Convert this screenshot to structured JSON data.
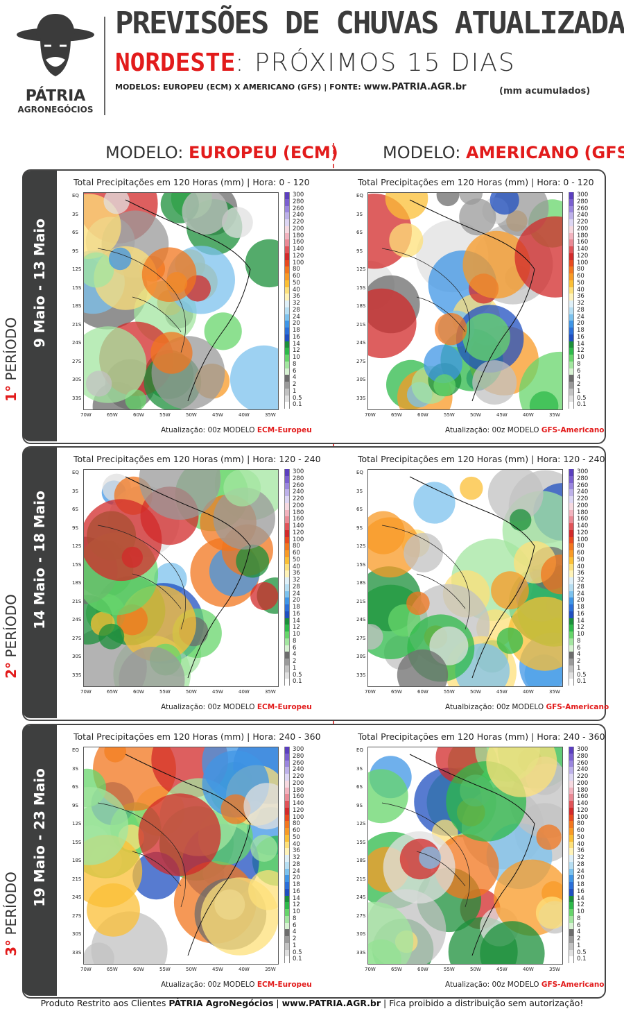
{
  "header": {
    "logo_name": "PÁTRIA",
    "logo_sub": "AGRONEGÓCIOS",
    "title": "PREVISÕES DE CHUVAS ATUALIZADAS",
    "region": "NORDESTE",
    "region_rest": ": PRÓXIMOS 15 DIAS",
    "models_line": "MODELOS: EUROPEU (ECM) X AMERICANO (GFS)  |  FONTE:",
    "source_url": "www.PATRIA.AGR.br",
    "units": "(mm acumulados)"
  },
  "columns": {
    "left_prefix": "MODELO: ",
    "left_name": "EUROPEU",
    "left_abbr": "(ECM)",
    "right_prefix": "MODELO: ",
    "right_name": "AMERICANO",
    "right_abbr": "(GFS)"
  },
  "periods": [
    {
      "number": "1°",
      "word": " PERÍODO",
      "dates": "9 Maio - 13 Maio",
      "ecm_title": "Total Precipitações em 120 Horas (mm)   |   Hora: 0 - 120",
      "gfs_title": "Total Precipitações em 120 Horas (mm)   |   Hora: 0 - 120",
      "ecm_update": "Atualização: 00z MODELO ",
      "ecm_model": "ECM-Europeu",
      "gfs_update": "Atualização: 00z MODELO ",
      "gfs_model": "GFS-Americano"
    },
    {
      "number": "2°",
      "word": " PERÍODO",
      "dates": "14 Maio - 18 Maio",
      "ecm_title": "Total Precipitações em 120 Horas (mm)   |   Hora: 120 - 240",
      "gfs_title": "Total Precipitações em 120 Horas (mm)   |   Hora: 120 - 240",
      "ecm_update": "Atualização: 00z MODELO ",
      "ecm_model": "ECM-Europeu",
      "gfs_update": "Atualbização: 00z MODELO ",
      "gfs_model": "GFS-Americano"
    },
    {
      "number": "3°",
      "word": " PERÍODO",
      "dates": "19 Maio - 23 Maio",
      "ecm_title": "Total Precipitações em 120 Horas (mm)   |   Hora: 240 - 360",
      "gfs_title": "Total Precipitações em 120 Horas (mm)   |   Hora: 240 - 360",
      "ecm_update": "Atualização: 00z MODELO ",
      "ecm_model": "ECM-Europeu",
      "gfs_update": "Atualização: 00z MODELO ",
      "gfs_model": "GFS-Americano"
    }
  ],
  "colorbar": {
    "levels": [
      "300",
      "280",
      "260",
      "240",
      "220",
      "200",
      "180",
      "160",
      "140",
      "120",
      "100",
      "80",
      "60",
      "50",
      "40",
      "36",
      "32",
      "28",
      "24",
      "20",
      "18",
      "16",
      "14",
      "12",
      "10",
      "8",
      "6",
      "4",
      "2",
      "1",
      "0.5",
      "0.1"
    ],
    "colors": [
      "#5b3fbf",
      "#7a5fd0",
      "#9a86de",
      "#bdb1e9",
      "#ddd6f3",
      "#f6d9e0",
      "#f2b3be",
      "#ea8a95",
      "#e05358",
      "#d22a2a",
      "#e84a1e",
      "#f2761e",
      "#f89a26",
      "#fbbf35",
      "#fde07a",
      "#fff3b8",
      "#dff0f8",
      "#b7dff3",
      "#7cc2ee",
      "#3f95e6",
      "#2b6fd8",
      "#1f4fc0",
      "#1b8f3a",
      "#2eb94a",
      "#67d56b",
      "#a3e6a0",
      "#d7f2d2",
      "#6c6c6c",
      "#9a9a9a",
      "#c2c2c2",
      "#e0e0e0",
      "#ffffff"
    ]
  },
  "axes": {
    "lat": [
      "EQ",
      "3S",
      "6S",
      "9S",
      "12S",
      "15S",
      "18S",
      "21S",
      "24S",
      "27S",
      "30S",
      "33S"
    ],
    "lon": [
      "70W",
      "65W",
      "60W",
      "55W",
      "50W",
      "45W",
      "40W",
      "35W"
    ]
  },
  "footer": {
    "pre": "Produto Restrito aos Clientes ",
    "brand": "PÁTRIA AgroNegócios",
    "mid": " | ",
    "url": "www.PATRIA.AGR.br",
    "post": " | Fica proibido a distribuição sem autorização!"
  }
}
